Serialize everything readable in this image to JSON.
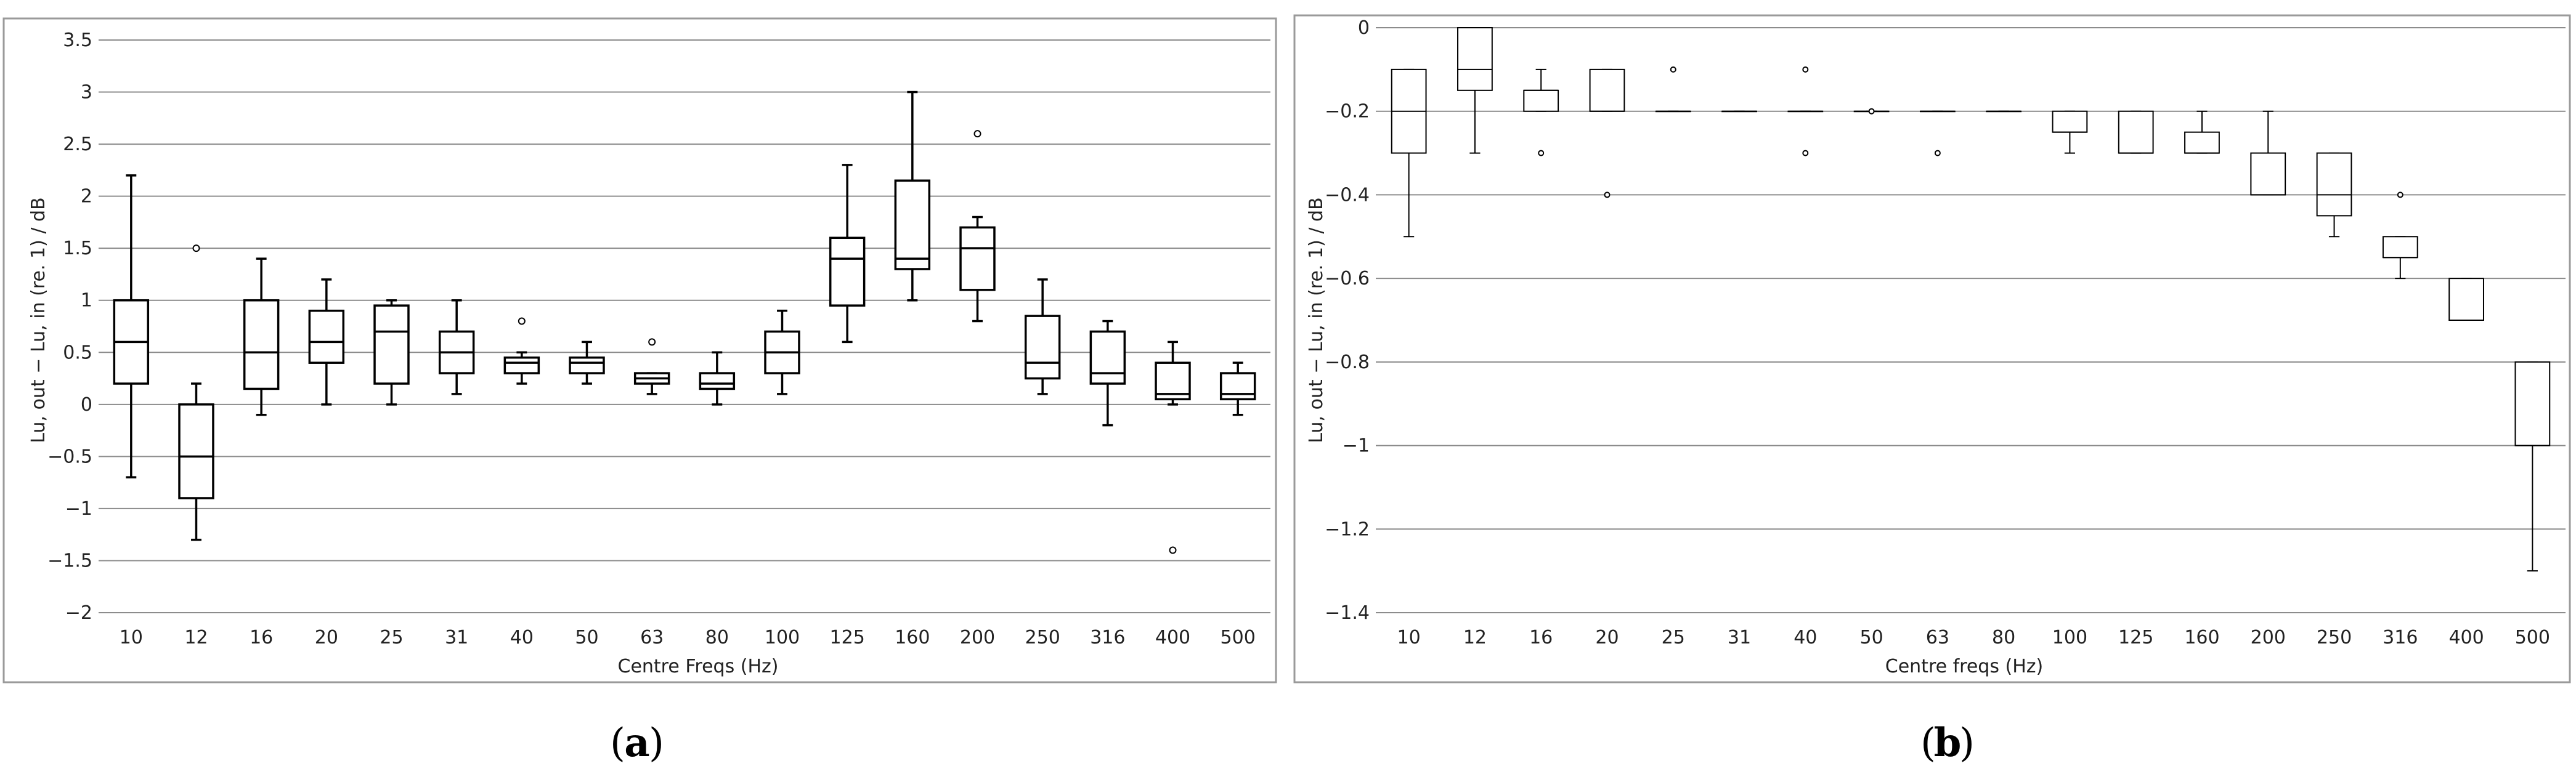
{
  "chart_data": [
    {
      "type": "box",
      "panel_label": "a",
      "xlabel": "Centre Freqs (Hz)",
      "ylabel": "Lu, out − Lu, in (re. 1) / dB",
      "ylim": [
        -2,
        3.5
      ],
      "yticks": [
        "3.5",
        "3",
        "2.5",
        "2",
        "1.5",
        "1",
        "0.5",
        "0",
        "−0.5",
        "−1",
        "−1.5",
        "−2"
      ],
      "grid": true,
      "categories": [
        "10",
        "12",
        "16",
        "20",
        "25",
        "31",
        "40",
        "50",
        "63",
        "80",
        "100",
        "125",
        "160",
        "200",
        "250",
        "316",
        "400",
        "500"
      ],
      "boxes": [
        {
          "min": -0.7,
          "q1": 0.2,
          "median": 0.6,
          "q3": 1.0,
          "max": 2.2,
          "outliers": []
        },
        {
          "min": -1.3,
          "q1": -0.9,
          "median": -0.5,
          "q3": 0.0,
          "max": 0.2,
          "outliers": [
            1.5
          ]
        },
        {
          "min": -0.1,
          "q1": 0.15,
          "median": 0.5,
          "q3": 1.0,
          "max": 1.4,
          "outliers": []
        },
        {
          "min": 0.0,
          "q1": 0.4,
          "median": 0.6,
          "q3": 0.9,
          "max": 1.2,
          "outliers": []
        },
        {
          "min": 0.0,
          "q1": 0.2,
          "median": 0.7,
          "q3": 0.95,
          "max": 1.0,
          "outliers": []
        },
        {
          "min": 0.1,
          "q1": 0.3,
          "median": 0.5,
          "q3": 0.7,
          "max": 1.0,
          "outliers": []
        },
        {
          "min": 0.2,
          "q1": 0.3,
          "median": 0.4,
          "q3": 0.45,
          "max": 0.5,
          "outliers": [
            0.8
          ]
        },
        {
          "min": 0.2,
          "q1": 0.3,
          "median": 0.4,
          "q3": 0.45,
          "max": 0.6,
          "outliers": []
        },
        {
          "min": 0.1,
          "q1": 0.2,
          "median": 0.25,
          "q3": 0.3,
          "max": 0.3,
          "outliers": [
            0.6
          ]
        },
        {
          "min": 0.0,
          "q1": 0.15,
          "median": 0.2,
          "q3": 0.3,
          "max": 0.5,
          "outliers": []
        },
        {
          "min": 0.1,
          "q1": 0.3,
          "median": 0.5,
          "q3": 0.7,
          "max": 0.9,
          "outliers": []
        },
        {
          "min": 0.6,
          "q1": 0.95,
          "median": 1.4,
          "q3": 1.6,
          "max": 2.3,
          "outliers": []
        },
        {
          "min": 1.0,
          "q1": 1.3,
          "median": 1.4,
          "q3": 2.15,
          "max": 3.0,
          "outliers": []
        },
        {
          "min": 0.8,
          "q1": 1.1,
          "median": 1.5,
          "q3": 1.7,
          "max": 1.8,
          "outliers": [
            2.6
          ]
        },
        {
          "min": 0.1,
          "q1": 0.25,
          "median": 0.4,
          "q3": 0.85,
          "max": 1.2,
          "outliers": []
        },
        {
          "min": -0.2,
          "q1": 0.2,
          "median": 0.3,
          "q3": 0.7,
          "max": 0.8,
          "outliers": []
        },
        {
          "min": 0.0,
          "q1": 0.05,
          "median": 0.1,
          "q3": 0.4,
          "max": 0.6,
          "outliers": [
            -1.4
          ]
        },
        {
          "min": -0.1,
          "q1": 0.05,
          "median": 0.1,
          "q3": 0.3,
          "max": 0.4,
          "outliers": []
        }
      ]
    },
    {
      "type": "box",
      "panel_label": "b",
      "xlabel": "Centre freqs (Hz)",
      "ylabel": "Lu, out − Lu, in (re. 1) / dB",
      "ylim": [
        -1.4,
        0
      ],
      "yticks": [
        "0",
        "−0.2",
        "−0.4",
        "−0.6",
        "−0.8",
        "−1",
        "−1.2",
        "−1.4"
      ],
      "grid": true,
      "categories": [
        "10",
        "12",
        "16",
        "20",
        "25",
        "31",
        "40",
        "50",
        "63",
        "80",
        "100",
        "125",
        "160",
        "200",
        "250",
        "316",
        "400",
        "500"
      ],
      "boxes": [
        {
          "min": -0.5,
          "q1": -0.3,
          "median": -0.2,
          "q3": -0.1,
          "max": -0.1,
          "outliers": []
        },
        {
          "min": -0.3,
          "q1": -0.15,
          "median": -0.1,
          "q3": 0.0,
          "max": 0.0,
          "outliers": []
        },
        {
          "min": -0.2,
          "q1": -0.2,
          "median": -0.15,
          "q3": -0.15,
          "max": -0.1,
          "outliers": [
            -0.3
          ]
        },
        {
          "min": -0.2,
          "q1": -0.2,
          "median": -0.2,
          "q3": -0.1,
          "max": -0.1,
          "outliers": [
            -0.4
          ]
        },
        {
          "min": -0.2,
          "q1": -0.2,
          "median": -0.2,
          "q3": -0.2,
          "max": -0.2,
          "outliers": [
            -0.1
          ]
        },
        {
          "min": -0.2,
          "q1": -0.2,
          "median": -0.2,
          "q3": -0.2,
          "max": -0.2,
          "outliers": []
        },
        {
          "min": -0.2,
          "q1": -0.2,
          "median": -0.2,
          "q3": -0.2,
          "max": -0.2,
          "outliers": [
            -0.1,
            -0.3
          ]
        },
        {
          "min": -0.2,
          "q1": -0.2,
          "median": -0.2,
          "q3": -0.2,
          "max": -0.2,
          "outliers": [
            -0.2
          ]
        },
        {
          "min": -0.2,
          "q1": -0.2,
          "median": -0.2,
          "q3": -0.2,
          "max": -0.2,
          "outliers": [
            -0.3
          ]
        },
        {
          "min": -0.2,
          "q1": -0.2,
          "median": -0.2,
          "q3": -0.2,
          "max": -0.2,
          "outliers": []
        },
        {
          "min": -0.3,
          "q1": -0.25,
          "median": -0.25,
          "q3": -0.2,
          "max": -0.2,
          "outliers": []
        },
        {
          "min": -0.3,
          "q1": -0.3,
          "median": -0.3,
          "q3": -0.2,
          "max": -0.2,
          "outliers": []
        },
        {
          "min": -0.3,
          "q1": -0.3,
          "median": -0.3,
          "q3": -0.25,
          "max": -0.2,
          "outliers": []
        },
        {
          "min": -0.4,
          "q1": -0.4,
          "median": -0.4,
          "q3": -0.3,
          "max": -0.2,
          "outliers": []
        },
        {
          "min": -0.5,
          "q1": -0.45,
          "median": -0.4,
          "q3": -0.3,
          "max": -0.3,
          "outliers": []
        },
        {
          "min": -0.6,
          "q1": -0.55,
          "median": -0.55,
          "q3": -0.5,
          "max": -0.5,
          "outliers": [
            -0.4
          ]
        },
        {
          "min": -0.7,
          "q1": -0.7,
          "median": -0.7,
          "q3": -0.6,
          "max": -0.6,
          "outliers": []
        },
        {
          "min": -1.3,
          "q1": -1.0,
          "median": -1.0,
          "q3": -0.8,
          "max": -0.8,
          "outliers": []
        }
      ]
    }
  ]
}
